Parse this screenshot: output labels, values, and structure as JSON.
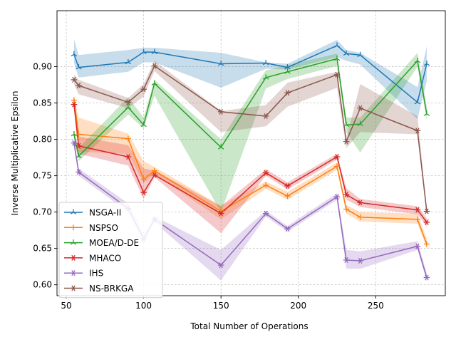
{
  "chart_data": {
    "type": "line",
    "title": "",
    "xlabel": "Total Number of Operations",
    "ylabel": "Inverse Multiplicative Epsilon",
    "xlim": [
      44,
      295
    ],
    "ylim": [
      0.585,
      0.977
    ],
    "x_ticks": [
      50,
      100,
      150,
      200,
      250
    ],
    "y_ticks": [
      0.6,
      0.65,
      0.7,
      0.75,
      0.8,
      0.85,
      0.9
    ],
    "y_tick_labels": [
      "0.60",
      "0.65",
      "0.70",
      "0.75",
      "0.80",
      "0.85",
      "0.90"
    ],
    "grid": true,
    "legend_position": "lower-left",
    "x": [
      55,
      58,
      90,
      100,
      107,
      150,
      179,
      193,
      225,
      231,
      240,
      277,
      283
    ],
    "series": [
      {
        "name": "NSGA-II",
        "color": "#1f77b4",
        "marker": "tri",
        "values": [
          0.917,
          0.899,
          0.906,
          0.92,
          0.92,
          0.904,
          0.905,
          0.899,
          0.929,
          0.918,
          0.916,
          0.851,
          0.904
        ],
        "lower": [
          0.905,
          0.885,
          0.893,
          0.906,
          0.906,
          0.871,
          0.897,
          0.896,
          0.913,
          0.908,
          0.903,
          0.828,
          0.88
        ],
        "upper": [
          0.938,
          0.916,
          0.923,
          0.926,
          0.926,
          0.919,
          0.906,
          0.904,
          0.937,
          0.923,
          0.919,
          0.872,
          0.928
        ]
      },
      {
        "name": "NSPSO",
        "color": "#ff7f0e",
        "marker": "plus",
        "values": [
          0.854,
          0.807,
          0.801,
          0.745,
          0.757,
          0.701,
          0.737,
          0.722,
          0.763,
          0.704,
          0.693,
          0.69,
          0.656
        ],
        "lower": [
          0.845,
          0.783,
          0.78,
          0.74,
          0.752,
          0.69,
          0.732,
          0.717,
          0.758,
          0.698,
          0.687,
          0.684,
          0.65
        ],
        "upper": [
          0.86,
          0.83,
          0.808,
          0.77,
          0.762,
          0.709,
          0.742,
          0.728,
          0.768,
          0.71,
          0.7,
          0.698,
          0.664
        ]
      },
      {
        "name": "MOEA/D-DE",
        "color": "#2ca02c",
        "marker": "tri",
        "values": [
          0.807,
          0.777,
          0.844,
          0.82,
          0.877,
          0.789,
          0.885,
          0.893,
          0.911,
          0.82,
          0.821,
          0.908,
          0.835
        ],
        "lower": [
          0.8,
          0.77,
          0.834,
          0.815,
          0.86,
          0.7,
          0.87,
          0.883,
          0.901,
          0.81,
          0.782,
          0.9,
          0.826
        ],
        "upper": [
          0.813,
          0.788,
          0.858,
          0.83,
          0.882,
          0.8,
          0.895,
          0.902,
          0.918,
          0.83,
          0.83,
          0.919,
          0.845
        ]
      },
      {
        "name": "MHACO",
        "color": "#d62728",
        "marker": "star",
        "values": [
          0.848,
          0.791,
          0.776,
          0.727,
          0.751,
          0.698,
          0.754,
          0.736,
          0.776,
          0.724,
          0.713,
          0.703,
          0.686
        ],
        "lower": [
          0.842,
          0.78,
          0.764,
          0.718,
          0.748,
          0.671,
          0.75,
          0.731,
          0.772,
          0.717,
          0.707,
          0.697,
          0.68
        ],
        "upper": [
          0.853,
          0.804,
          0.792,
          0.76,
          0.757,
          0.708,
          0.759,
          0.741,
          0.78,
          0.733,
          0.718,
          0.708,
          0.692
        ]
      },
      {
        "name": "IHS",
        "color": "#9467bd",
        "marker": "star",
        "values": [
          0.795,
          0.755,
          0.705,
          0.663,
          0.69,
          0.627,
          0.698,
          0.677,
          0.721,
          0.634,
          0.633,
          0.653,
          0.61
        ],
        "lower": [
          0.79,
          0.75,
          0.7,
          0.657,
          0.686,
          0.606,
          0.694,
          0.673,
          0.717,
          0.622,
          0.622,
          0.648,
          0.605
        ],
        "upper": [
          0.801,
          0.76,
          0.712,
          0.67,
          0.694,
          0.648,
          0.702,
          0.681,
          0.726,
          0.648,
          0.646,
          0.66,
          0.616
        ]
      },
      {
        "name": "NS-BRKGA",
        "color": "#8c564b",
        "marker": "star",
        "values": [
          0.882,
          0.874,
          0.851,
          0.869,
          0.901,
          0.838,
          0.832,
          0.864,
          0.889,
          0.797,
          0.843,
          0.812,
          0.701
        ],
        "lower": [
          0.876,
          0.862,
          0.843,
          0.859,
          0.894,
          0.81,
          0.818,
          0.845,
          0.871,
          0.788,
          0.81,
          0.807,
          0.697
        ],
        "upper": [
          0.889,
          0.882,
          0.857,
          0.876,
          0.908,
          0.839,
          0.847,
          0.878,
          0.893,
          0.802,
          0.876,
          0.832,
          0.706
        ]
      }
    ]
  }
}
